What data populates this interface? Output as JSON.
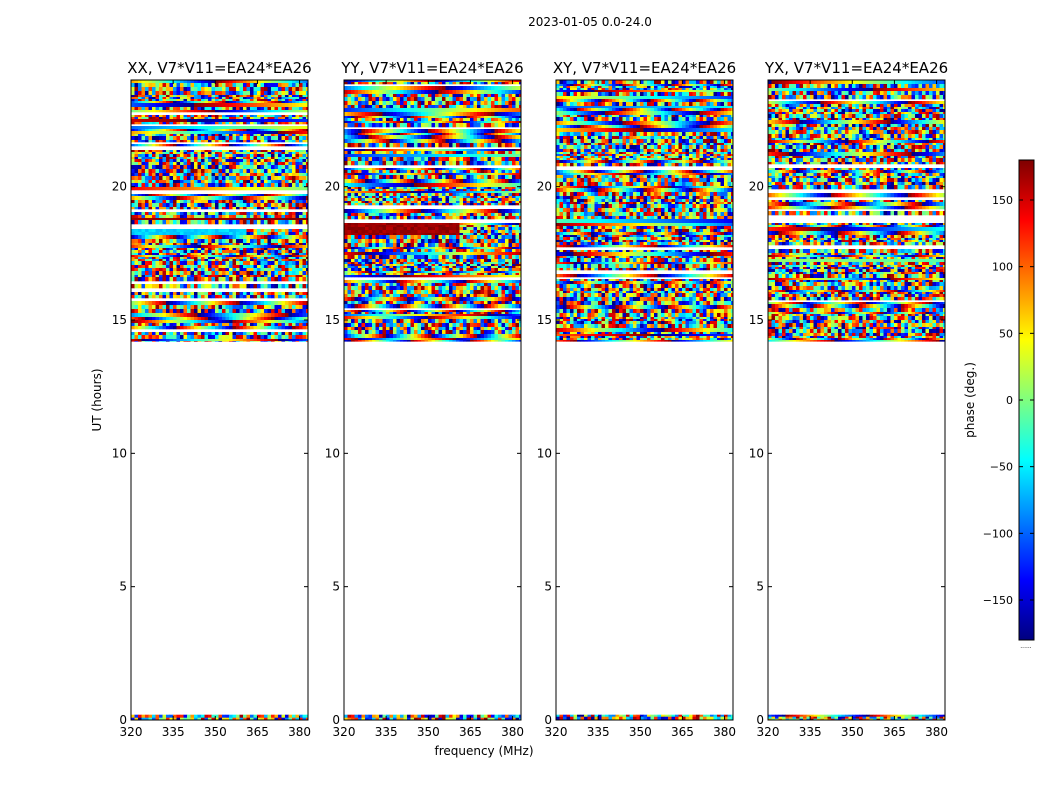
{
  "figure_title": "2023-01-05 0.0-24.0",
  "colorbar": {
    "label": "phase (deg.)",
    "min": -180,
    "max": 180,
    "ticks": [
      -150,
      -100,
      -50,
      0,
      50,
      100,
      150
    ],
    "tick_labels": [
      "−150",
      "−100",
      "−50",
      "0",
      "50",
      "100",
      "150"
    ],
    "colormap": "jet",
    "colors": [
      "#00007f",
      "#0000ff",
      "#007fff",
      "#00ffff",
      "#7fff7f",
      "#ffff00",
      "#ff7f00",
      "#ff0000",
      "#7f0000"
    ]
  },
  "chart_data": {
    "type": "heatmap",
    "xlabel": "frequency (MHz)",
    "ylabel": "UT (hours)",
    "xlim": [
      320,
      383
    ],
    "ylim": [
      0,
      24
    ],
    "xticks": [
      320,
      335,
      350,
      365,
      380
    ],
    "xtick_labels": [
      "320",
      "335",
      "350",
      "365",
      "380"
    ],
    "yticks": [
      0,
      5,
      10,
      15,
      20
    ],
    "ytick_labels": [
      "0",
      "5",
      "10",
      "15",
      "20"
    ],
    "value_label": "phase (deg.)",
    "panels": [
      {
        "title": "XX, V7*V11=EA24*EA26",
        "data_intervals_ut": [
          [
            0.0,
            0.2
          ],
          [
            14.2,
            24.0
          ]
        ],
        "features": [
          {
            "ut_range": [
              18.2,
              18.7
            ],
            "freq_range": [
              320,
              360
            ],
            "phase_deg": -60,
            "note": "coherent cyan band"
          }
        ]
      },
      {
        "title": "YY, V7*V11=EA24*EA26",
        "data_intervals_ut": [
          [
            0.0,
            0.2
          ],
          [
            14.2,
            24.0
          ]
        ],
        "features": [
          {
            "ut_range": [
              18.2,
              18.7
            ],
            "freq_range": [
              320,
              360
            ],
            "phase_deg": 170,
            "note": "coherent red band"
          }
        ]
      },
      {
        "title": "XY, V7*V11=EA24*EA26",
        "data_intervals_ut": [
          [
            0.0,
            0.2
          ],
          [
            14.2,
            24.0
          ]
        ],
        "features": []
      },
      {
        "title": "YX, V7*V11=EA24*EA26",
        "data_intervals_ut": [
          [
            0.0,
            0.2
          ],
          [
            14.2,
            24.0
          ]
        ],
        "features": []
      }
    ]
  }
}
